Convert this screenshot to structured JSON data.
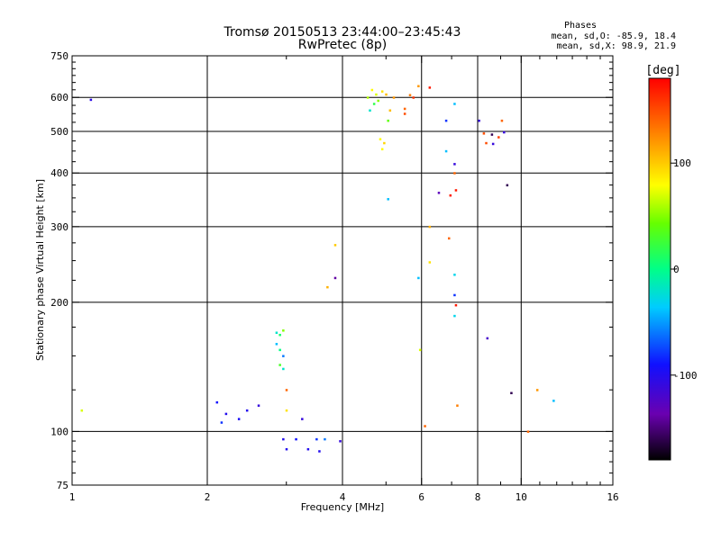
{
  "chart_data": {
    "type": "scatter",
    "title": "Tromsø 20150513 23:44:00–23:45:43",
    "subtitle": "RwPretec (8p)",
    "xlabel": "Frequency [MHz]",
    "ylabel": "Stationary phase Virtual Height [km]",
    "x_scale": "log",
    "y_scale": "log",
    "xlim": [
      1,
      16
    ],
    "ylim": [
      75,
      750
    ],
    "x_ticks": [
      "1",
      "2",
      "4",
      "6",
      "8",
      "10",
      "16"
    ],
    "x_tick_values": [
      1,
      2,
      4,
      6,
      8,
      10,
      16
    ],
    "y_ticks": [
      "75",
      "100",
      "200",
      "300",
      "400",
      "500",
      "600",
      "750"
    ],
    "y_tick_values": [
      75,
      100,
      200,
      300,
      400,
      500,
      600,
      750
    ],
    "grid_x": [
      2,
      4,
      6,
      8,
      10
    ],
    "grid_y": [
      100,
      200,
      300,
      400,
      500,
      600
    ],
    "stats": {
      "heading": "Phases",
      "line_o": "mean, sd,O: -85.9, 18.4",
      "line_x": "mean, sd,X:  98.9, 21.9"
    },
    "colorbar": {
      "title": "[deg]",
      "ticks": [
        "100",
        "0",
        "-100"
      ],
      "tick_values": [
        100,
        0,
        -100
      ],
      "range": [
        -180,
        180
      ]
    },
    "points": [
      [
        1.1,
        593,
        -105
      ],
      [
        1.05,
        112,
        70
      ],
      [
        2.85,
        170,
        -20
      ],
      [
        2.9,
        168,
        10
      ],
      [
        2.95,
        172,
        50
      ],
      [
        2.85,
        160,
        -40
      ],
      [
        2.9,
        155,
        0
      ],
      [
        2.95,
        150,
        -60
      ],
      [
        2.9,
        143,
        30
      ],
      [
        2.95,
        140,
        -20
      ],
      [
        3.0,
        125,
        140
      ],
      [
        3.0,
        112,
        90
      ],
      [
        2.1,
        117,
        -90
      ],
      [
        2.2,
        110,
        -100
      ],
      [
        2.45,
        112,
        -100
      ],
      [
        2.6,
        115,
        -110
      ],
      [
        2.15,
        105,
        -80
      ],
      [
        2.35,
        107,
        -95
      ],
      [
        3.25,
        107,
        -110
      ],
      [
        3.15,
        96,
        -90
      ],
      [
        3.35,
        91,
        -100
      ],
      [
        3.5,
        96,
        -80
      ],
      [
        3.65,
        96,
        -60
      ],
      [
        3.55,
        90,
        -100
      ],
      [
        3.0,
        91,
        -100
      ],
      [
        2.95,
        96,
        -100
      ],
      [
        3.95,
        95,
        -110
      ],
      [
        3.7,
        217,
        110
      ],
      [
        3.85,
        228,
        -140
      ],
      [
        3.85,
        272,
        100
      ],
      [
        4.85,
        480,
        80
      ],
      [
        4.95,
        470,
        95
      ],
      [
        4.9,
        455,
        80
      ],
      [
        5.2,
        600,
        120
      ],
      [
        5.1,
        560,
        105
      ],
      [
        5.5,
        565,
        140
      ],
      [
        5.5,
        550,
        150
      ],
      [
        5.65,
        608,
        130
      ],
      [
        5.75,
        600,
        160
      ],
      [
        4.65,
        625,
        80
      ],
      [
        4.75,
        610,
        70
      ],
      [
        4.8,
        590,
        50
      ],
      [
        4.9,
        620,
        90
      ],
      [
        5.0,
        610,
        105
      ],
      [
        4.7,
        580,
        20
      ],
      [
        4.6,
        560,
        -20
      ],
      [
        5.05,
        530,
        40
      ],
      [
        4.55,
        600,
        60
      ],
      [
        5.05,
        348,
        -40
      ],
      [
        5.9,
        228,
        -40
      ],
      [
        5.95,
        155,
        70
      ],
      [
        6.25,
        300,
        110
      ],
      [
        6.25,
        248,
        90
      ],
      [
        6.1,
        103,
        140
      ],
      [
        6.55,
        360,
        -130
      ],
      [
        6.8,
        450,
        -40
      ],
      [
        6.9,
        282,
        140
      ],
      [
        6.95,
        355,
        170
      ],
      [
        7.1,
        420,
        -110
      ],
      [
        7.1,
        400,
        140
      ],
      [
        7.15,
        365,
        170
      ],
      [
        7.1,
        232,
        -30
      ],
      [
        7.1,
        208,
        -80
      ],
      [
        7.15,
        197,
        170
      ],
      [
        7.1,
        186,
        -30
      ],
      [
        7.2,
        115,
        130
      ],
      [
        7.1,
        580,
        -40
      ],
      [
        6.8,
        530,
        -80
      ],
      [
        8.05,
        530,
        -110
      ],
      [
        8.25,
        495,
        150
      ],
      [
        8.35,
        470,
        150
      ],
      [
        8.6,
        492,
        -160
      ],
      [
        8.65,
        468,
        -110
      ],
      [
        8.9,
        485,
        155
      ],
      [
        9.05,
        530,
        140
      ],
      [
        9.15,
        498,
        -110
      ],
      [
        9.3,
        375,
        -160
      ],
      [
        8.4,
        165,
        -120
      ],
      [
        9.5,
        123,
        -160
      ],
      [
        10.35,
        100,
        140
      ],
      [
        10.85,
        125,
        120
      ],
      [
        11.8,
        118,
        -40
      ],
      [
        6.25,
        633,
        170
      ],
      [
        5.9,
        638,
        120
      ]
    ]
  }
}
